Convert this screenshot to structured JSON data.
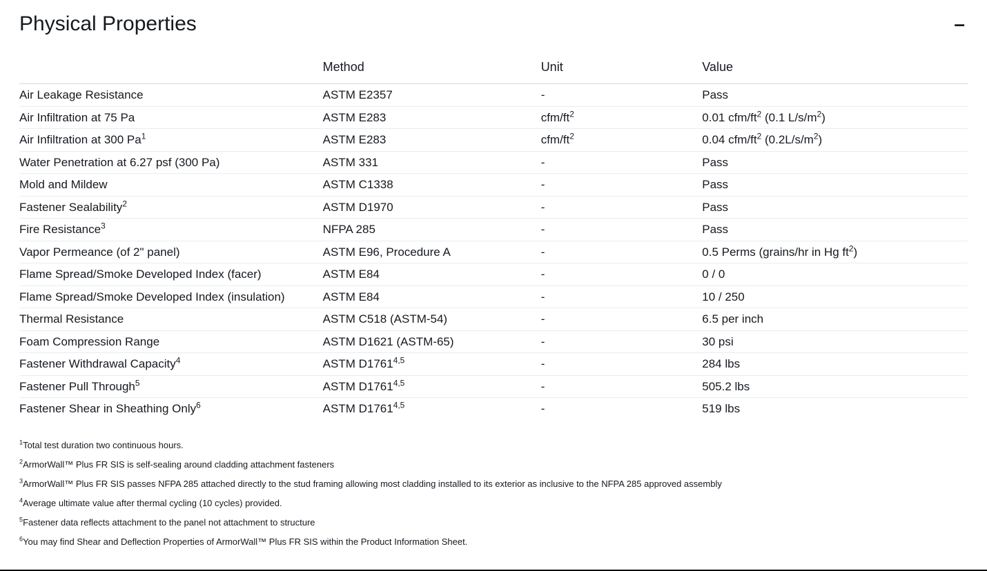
{
  "panel": {
    "title": "Physical Properties",
    "collapse_glyph": "–"
  },
  "table": {
    "columns": [
      "",
      "Method",
      "Unit",
      "Value"
    ],
    "col_widths_pct": [
      32,
      23,
      17,
      28
    ],
    "header_fontsize": 18,
    "cell_fontsize": 17,
    "border_color": "#eaeded",
    "header_border_color": "#d5dbdb",
    "text_color": "#16191f",
    "background_color": "#ffffff",
    "rows": [
      {
        "property": "Air Leakage Resistance",
        "method": "ASTM E2357",
        "unit": "-",
        "value": "Pass"
      },
      {
        "property": "Air Infiltration at 75 Pa",
        "method": "ASTM E283",
        "unit": "cfm/ft<sup>2</sup>",
        "value": "0.01 cfm/ft<sup>2</sup> (0.1 L/s/m<sup>2</sup>)"
      },
      {
        "property": "Air Infiltration at 300 Pa<sup>1</sup>",
        "method": "ASTM E283",
        "unit": "cfm/ft<sup>2</sup>",
        "value": "0.04 cfm/ft<sup>2</sup> (0.2L/s/m<sup>2</sup>)"
      },
      {
        "property": "Water Penetration at 6.27 psf (300 Pa)",
        "method": "ASTM 331",
        "unit": "-",
        "value": "Pass"
      },
      {
        "property": "Mold and Mildew",
        "method": "ASTM C1338",
        "unit": "-",
        "value": "Pass"
      },
      {
        "property": "Fastener Sealability<sup>2</sup>",
        "method": "ASTM D1970",
        "unit": "-",
        "value": "Pass"
      },
      {
        "property": "Fire Resistance<sup>3</sup>",
        "method": "NFPA 285",
        "unit": "-",
        "value": "Pass"
      },
      {
        "property": "Vapor Permeance (of 2\" panel)",
        "method": "ASTM E96, Procedure A",
        "unit": "-",
        "value": "0.5 Perms (grains/hr in Hg ft<sup>2</sup>)"
      },
      {
        "property": "Flame Spread/Smoke Developed Index (facer)",
        "method": "ASTM E84",
        "unit": "-",
        "value": "0 / 0"
      },
      {
        "property": "Flame Spread/Smoke Developed Index (insulation)",
        "method": "ASTM E84",
        "unit": "-",
        "value": "10 / 250"
      },
      {
        "property": "Thermal Resistance",
        "method": "ASTM C518 (ASTM-54)",
        "unit": "-",
        "value": "6.5 per inch"
      },
      {
        "property": "Foam Compression Range",
        "method": "ASTM D1621 (ASTM-65)",
        "unit": "-",
        "value": "30 psi"
      },
      {
        "property": "Fastener Withdrawal Capacity<sup>4</sup>",
        "method": "ASTM D1761<sup>4,5</sup>",
        "unit": "-",
        "value": "284 lbs"
      },
      {
        "property": "Fastener Pull Through<sup>5</sup>",
        "method": "ASTM D1761<sup>4,5</sup>",
        "unit": "-",
        "value": "505.2 lbs"
      },
      {
        "property": "Fastener Shear in Sheathing Only<sup>6</sup>",
        "method": "ASTM D1761<sup>4,5</sup>",
        "unit": "-",
        "value": "519 lbs"
      }
    ]
  },
  "footnotes": {
    "fontsize": 13,
    "items": [
      "<sup>1</sup>Total test duration two continuous hours.",
      "<sup>2</sup>ArmorWall™ Plus FR SIS is self-sealing around cladding attachment fasteners",
      "<sup>3</sup>ArmorWall™ Plus FR SIS passes NFPA 285 attached directly to the stud framing allowing most cladding installed to its exterior as inclusive to the NFPA 285 approved assembly",
      "<sup>4</sup>Average ultimate value after thermal cycling (10 cycles) provided.",
      "<sup>5</sup>Fastener data reflects attachment to the panel not attachment to structure",
      "<sup>6</sup>You may find Shear and Deflection Properties of ArmorWall™ Plus FR SIS within the Product Information Sheet."
    ]
  }
}
